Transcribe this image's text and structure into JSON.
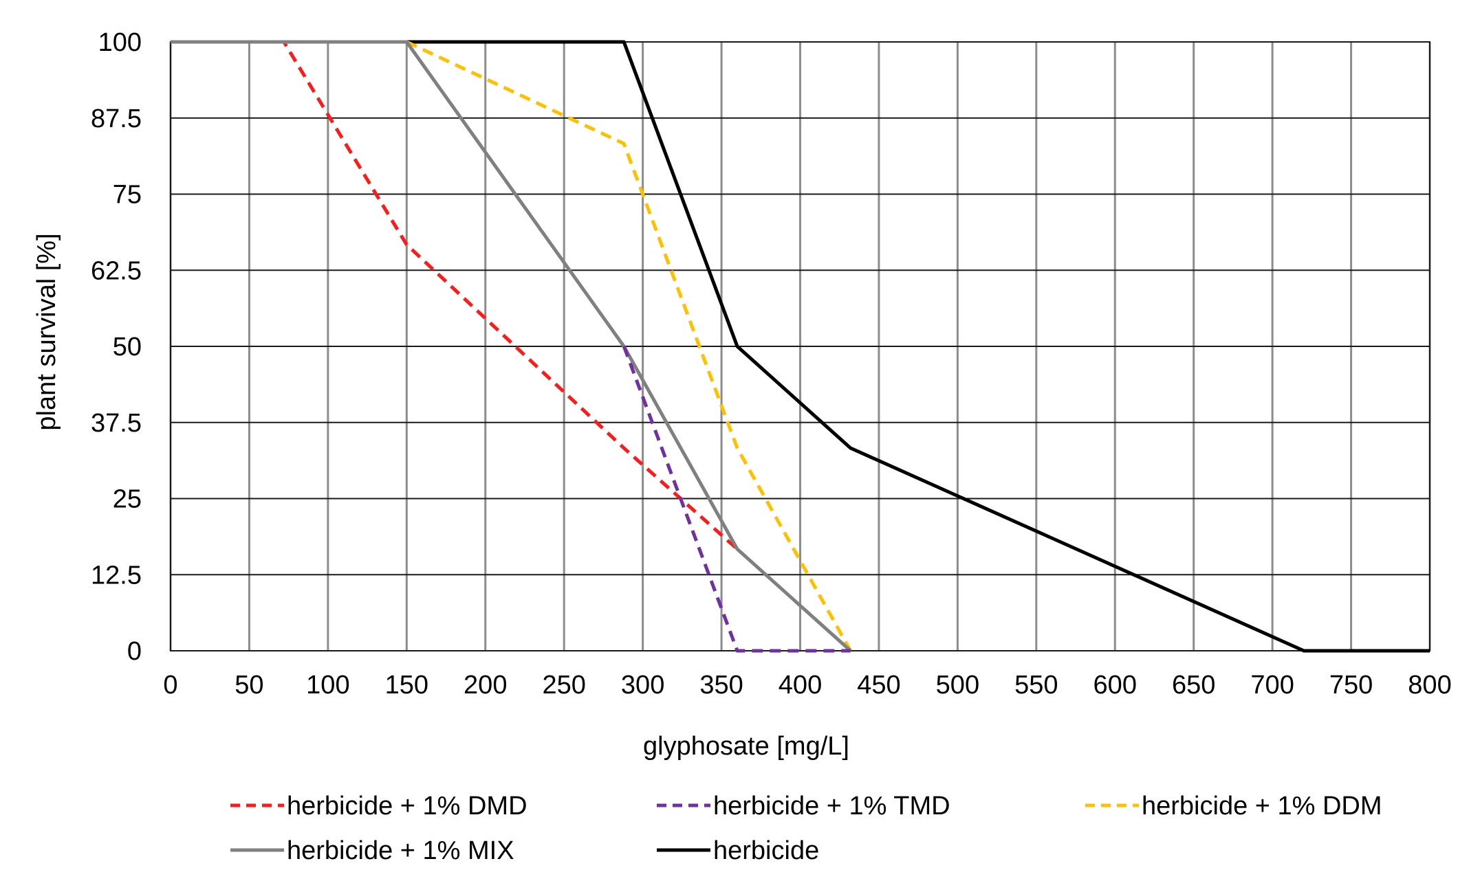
{
  "chart_data": {
    "type": "line",
    "title": "",
    "xlabel": "glyphosate [mg/L]",
    "ylabel": "plant survival [%]",
    "xlim": [
      0,
      800
    ],
    "ylim": [
      0,
      100
    ],
    "xticks": [
      0,
      50,
      100,
      150,
      200,
      250,
      300,
      350,
      400,
      450,
      500,
      550,
      600,
      650,
      700,
      750,
      800
    ],
    "yticks": [
      0,
      12.5,
      25,
      37.5,
      50,
      62.5,
      75,
      87.5,
      100
    ],
    "xtick_labels": [
      "0",
      "50",
      "100",
      "150",
      "200",
      "250",
      "300",
      "350",
      "400",
      "450",
      "500",
      "550",
      "600",
      "650",
      "700",
      "750",
      "800"
    ],
    "ytick_labels": [
      "0",
      "12.5",
      "25",
      "37.5",
      "50",
      "62.5",
      "75",
      "87.5",
      "100"
    ],
    "grid": true,
    "legend_position": "bottom",
    "series": [
      {
        "name": "herbicide + 1% DMD",
        "color": "#ff1a1a",
        "dash": "dashed",
        "points": [
          [
            0,
            100
          ],
          [
            72,
            100
          ],
          [
            150,
            66.7
          ],
          [
            288,
            33.3
          ],
          [
            360,
            16.7
          ]
        ]
      },
      {
        "name": "herbicide + 1% TMD",
        "color": "#7030a0",
        "dash": "dashed",
        "points": [
          [
            288,
            50
          ],
          [
            360,
            0
          ],
          [
            432,
            0
          ]
        ]
      },
      {
        "name": "herbicide + 1% DDM",
        "color": "#ffc000",
        "dash": "dashed",
        "points": [
          [
            150,
            100
          ],
          [
            288,
            83.3
          ],
          [
            360,
            33.3
          ],
          [
            432,
            0
          ]
        ]
      },
      {
        "name": "herbicide + 1% MIX",
        "color": "#808080",
        "dash": "solid",
        "points": [
          [
            0,
            100
          ],
          [
            150,
            100
          ],
          [
            288,
            50
          ],
          [
            360,
            16.7
          ],
          [
            432,
            0
          ]
        ]
      },
      {
        "name": "herbicide",
        "color": "#000000",
        "dash": "solid",
        "points": [
          [
            0,
            100
          ],
          [
            288,
            100
          ],
          [
            360,
            50
          ],
          [
            432,
            33.3
          ],
          [
            720,
            0
          ],
          [
            800,
            0
          ]
        ]
      }
    ]
  }
}
